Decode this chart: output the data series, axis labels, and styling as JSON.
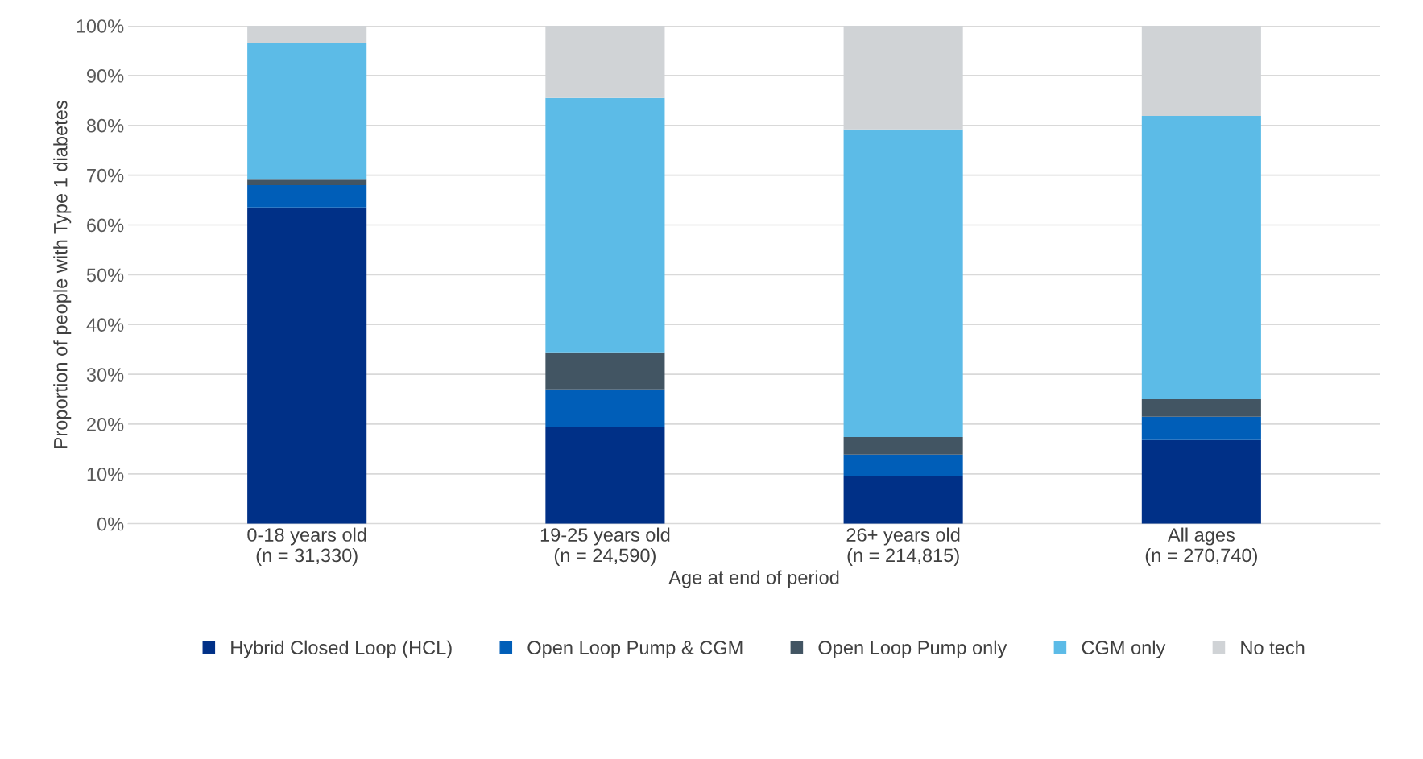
{
  "chart_data": {
    "type": "bar",
    "stacked": true,
    "xlabel": "Age at end of period",
    "ylabel": "Proportion of people with Type 1 diabetes",
    "categories": [
      "0-18 years old\n(n = 31,330)",
      "19-25 years old\n(n = 24,590)",
      "26+ years old\n(n = 214,815)",
      "All ages\n(n = 270,740)"
    ],
    "series": [
      {
        "name": "Hybrid Closed Loop (HCL)",
        "color": "#003087",
        "values": [
          63.5,
          19.4,
          9.5,
          16.8
        ]
      },
      {
        "name": "Open Loop Pump & CGM",
        "color": "#005eb8",
        "values": [
          4.5,
          7.6,
          4.4,
          4.7
        ]
      },
      {
        "name": "Open Loop Pump only",
        "color": "#425563",
        "values": [
          1.1,
          7.4,
          3.5,
          3.5
        ]
      },
      {
        "name": "CGM only",
        "color": "#5cbbe7",
        "values": [
          27.5,
          51.1,
          61.8,
          56.9
        ]
      },
      {
        "name": "No tech",
        "color": "#d0d3d6",
        "values": [
          3.4,
          14.5,
          20.8,
          18.1
        ]
      }
    ],
    "ylim": [
      0,
      100
    ],
    "yticks": [
      {
        "value": 0,
        "label": "0%"
      },
      {
        "value": 10,
        "label": "10%"
      },
      {
        "value": 20,
        "label": "20%"
      },
      {
        "value": 30,
        "label": "30%"
      },
      {
        "value": 40,
        "label": "40%"
      },
      {
        "value": 50,
        "label": "50%"
      },
      {
        "value": 60,
        "label": "60%"
      },
      {
        "value": 70,
        "label": "70%"
      },
      {
        "value": 80,
        "label": "80%"
      },
      {
        "value": 90,
        "label": "90%"
      },
      {
        "value": 100,
        "label": "100%"
      }
    ],
    "grid": "y",
    "legend": "bottom"
  }
}
